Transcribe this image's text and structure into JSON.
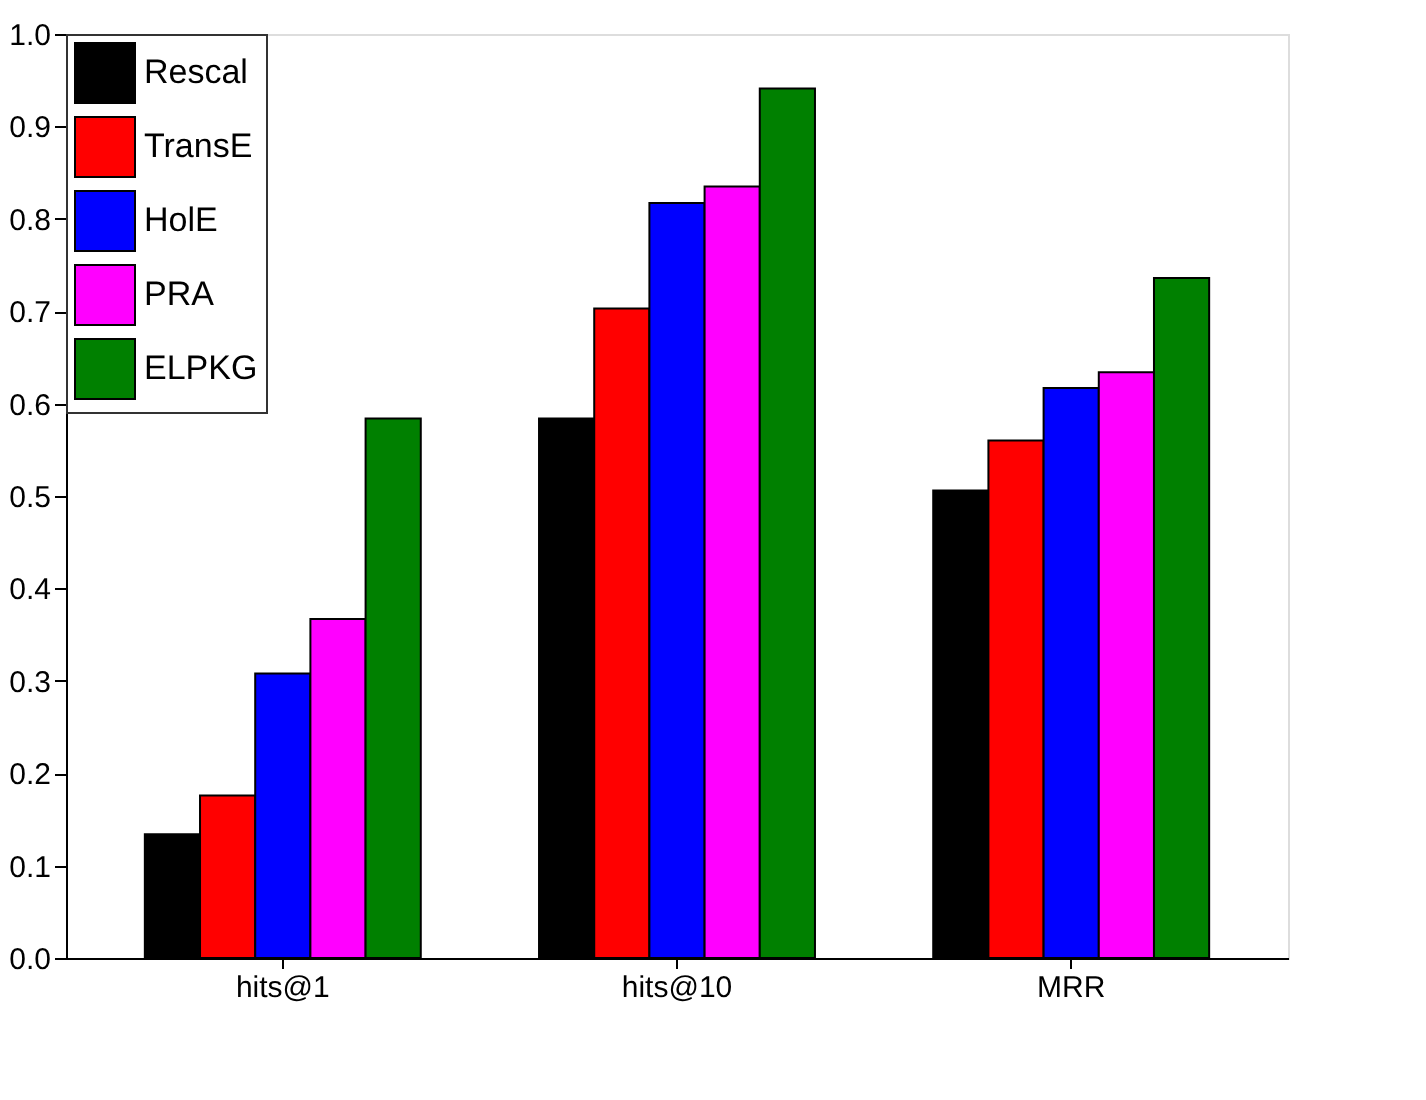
{
  "chart_data": {
    "type": "bar",
    "categories": [
      "hits@1",
      "hits@10",
      "MRR"
    ],
    "series": [
      {
        "name": "Rescal",
        "color": "#000000",
        "values": [
          0.134,
          0.584,
          0.506
        ]
      },
      {
        "name": "TransE",
        "color": "#ff0000",
        "values": [
          0.176,
          0.703,
          0.56
        ]
      },
      {
        "name": "HolE",
        "color": "#0000ff",
        "values": [
          0.308,
          0.817,
          0.617
        ]
      },
      {
        "name": "PRA",
        "color": "#ff00ff",
        "values": [
          0.367,
          0.835,
          0.634
        ]
      },
      {
        "name": "ELPKG",
        "color": "#008000",
        "values": [
          0.584,
          0.941,
          0.736
        ]
      }
    ],
    "ylim": [
      0,
      1.0
    ],
    "yticks": [
      {
        "value": 0,
        "label": "0.0"
      },
      0.1,
      0.2,
      0.3,
      0.4,
      0.5,
      0.6,
      0.7,
      0.8,
      0.9,
      {
        "value": 1.0,
        "label": "1.0"
      }
    ],
    "grid": false,
    "legend": "top left"
  }
}
